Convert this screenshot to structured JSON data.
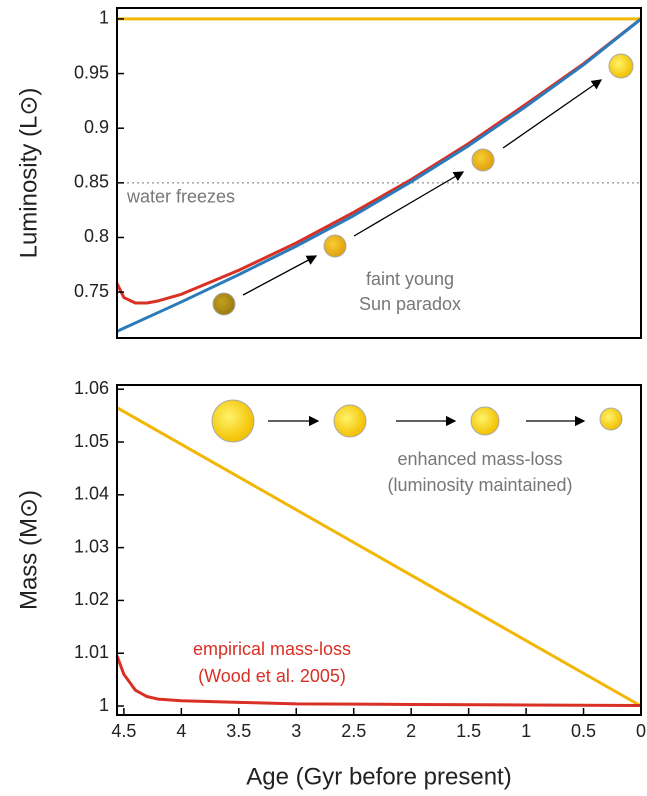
{
  "chart_data": [
    {
      "type": "line",
      "ylabel": "Luminosity (L⊙)",
      "xlim": [
        4.56,
        0
      ],
      "ylim": [
        0.708,
        1.01
      ],
      "yticks": [
        0.75,
        0.8,
        0.85,
        0.9,
        0.95,
        1
      ],
      "threshold": {
        "value": 0.85,
        "label": "water freezes",
        "color": "#999999"
      },
      "annotations": [
        "faint young",
        "Sun paradox"
      ],
      "series": [
        {
          "color": "#f2b705",
          "x": [
            4.56,
            0
          ],
          "values": [
            1,
            1
          ]
        },
        {
          "color": "#d93025",
          "x": [
            4.56,
            4.5,
            4.4,
            4.3,
            4.2,
            4,
            3.5,
            3,
            2.5,
            2,
            1.5,
            1,
            0.5,
            0
          ],
          "values": [
            0.758,
            0.745,
            0.74,
            0.74,
            0.742,
            0.748,
            0.77,
            0.795,
            0.823,
            0.853,
            0.886,
            0.922,
            0.959,
            1
          ]
        },
        {
          "color": "#2b7bba",
          "x": [
            4.56,
            4.5,
            4,
            3.5,
            3,
            2.5,
            2,
            1.5,
            1,
            0.5,
            0
          ],
          "values": [
            0.714,
            0.717,
            0.741,
            0.766,
            0.792,
            0.82,
            0.851,
            0.884,
            0.92,
            0.958,
            1
          ]
        }
      ]
    },
    {
      "type": "line",
      "ylabel": "Mass (M⊙)",
      "xlabel": "Age (Gyr before present)",
      "xlim": [
        4.56,
        0
      ],
      "ylim": [
        0.9983,
        1.0608
      ],
      "xticks": [
        4.5,
        4,
        3.5,
        3,
        2.5,
        2,
        1.5,
        1,
        0.5,
        0
      ],
      "yticks": [
        1,
        1.01,
        1.02,
        1.03,
        1.04,
        1.05,
        1.06
      ],
      "annotations": [
        "enhanced mass-loss",
        "(luminosity maintained)",
        "empirical mass-loss",
        "(Wood et al. 2005)"
      ],
      "series": [
        {
          "color": "#f2b705",
          "x": [
            4.56,
            0
          ],
          "values": [
            1.0565,
            1.0
          ]
        },
        {
          "color": "#d93025",
          "x": [
            4.56,
            4.5,
            4.4,
            4.3,
            4.2,
            4,
            3.5,
            3,
            2,
            1,
            0
          ],
          "values": [
            1.0095,
            1.006,
            1.003,
            1.0018,
            1.0013,
            1.001,
            1.0007,
            1.0004,
            1.0003,
            1.0002,
            1.0001
          ]
        }
      ]
    }
  ]
}
